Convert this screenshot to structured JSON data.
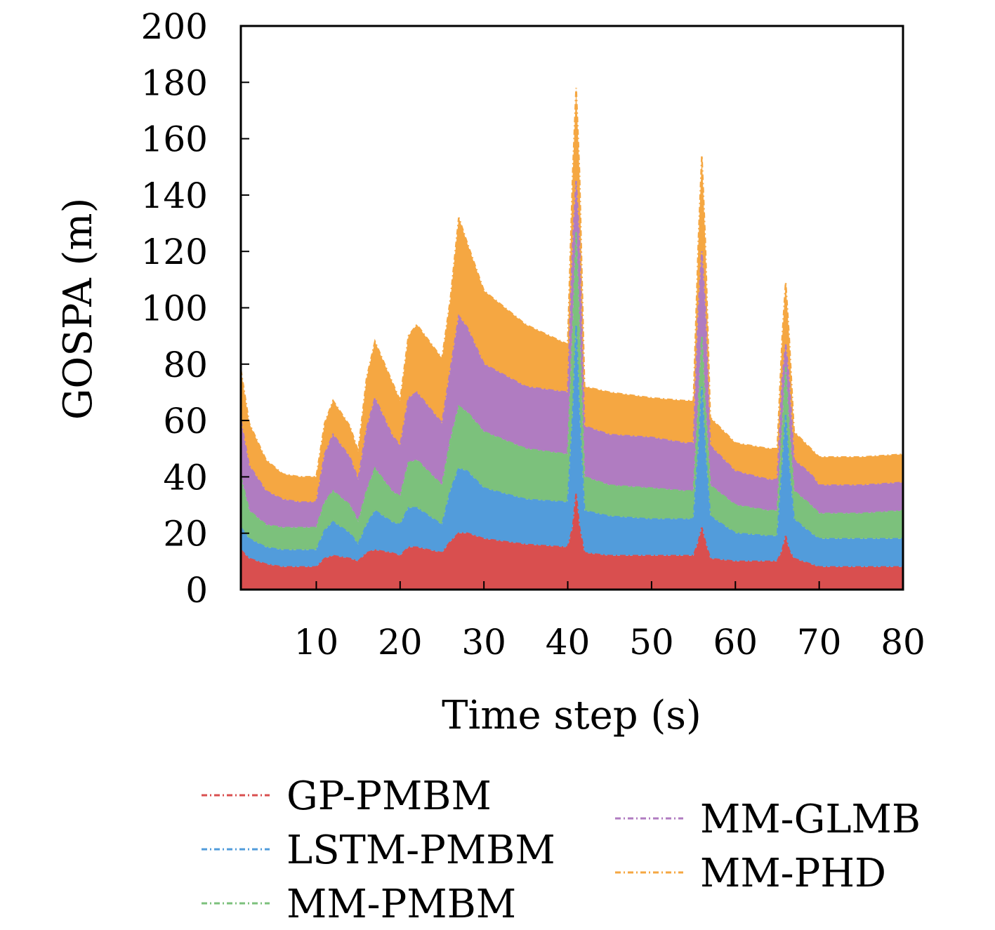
{
  "chart_data": {
    "type": "area",
    "stacked": true,
    "xlabel": "Time step (s)",
    "ylabel": "GOSPA (m)",
    "xlim": [
      1,
      80
    ],
    "ylim": [
      0,
      200
    ],
    "xticks": [
      10,
      20,
      30,
      40,
      50,
      60,
      70,
      80
    ],
    "yticks": [
      0,
      20,
      40,
      60,
      80,
      100,
      120,
      140,
      160,
      180,
      200
    ],
    "grid": false,
    "line_style": "dash-dot",
    "x": [
      1,
      2,
      4,
      6,
      8,
      9,
      10,
      11,
      12,
      14,
      15,
      16,
      17,
      19,
      20,
      21,
      22,
      25,
      26,
      27,
      28,
      30,
      35,
      40,
      40.6,
      41,
      41.4,
      42,
      45,
      50,
      54,
      55,
      55.6,
      56,
      56.4,
      57,
      60,
      64,
      65,
      65.6,
      66,
      66.4,
      67,
      69,
      70,
      75,
      80
    ],
    "series": [
      {
        "name": "GP-PMBM",
        "color": "#d94f4f",
        "values": [
          14,
          11,
          9,
          8,
          8,
          8,
          8,
          11,
          12,
          11,
          10,
          13,
          14,
          13,
          12,
          15,
          15,
          13,
          17,
          20,
          20,
          18,
          16,
          15,
          22,
          34,
          22,
          13,
          12,
          12,
          12,
          12,
          17,
          22,
          17,
          11,
          10,
          10,
          10,
          14,
          19,
          14,
          11,
          9,
          8,
          8,
          8
        ]
      },
      {
        "name": "LSTM-PMBM",
        "color": "#529cdb",
        "values": [
          8,
          7,
          6,
          6,
          6,
          6,
          6,
          10,
          12,
          9,
          6,
          10,
          14,
          11,
          11,
          14,
          14,
          10,
          18,
          23,
          22,
          18,
          16,
          16,
          40,
          60,
          40,
          15,
          14,
          13,
          13,
          13,
          33,
          50,
          33,
          15,
          10,
          9,
          9,
          30,
          43,
          30,
          14,
          11,
          10,
          10,
          10
        ]
      },
      {
        "name": "MM-PMBM",
        "color": "#7cc17c",
        "values": [
          18,
          10,
          8,
          8,
          8,
          8,
          8,
          10,
          11,
          10,
          8,
          12,
          15,
          11,
          10,
          16,
          17,
          14,
          18,
          22,
          21,
          20,
          18,
          17,
          31,
          33,
          31,
          12,
          11,
          11,
          10,
          10,
          16,
          18,
          16,
          11,
          10,
          9,
          9,
          14,
          17,
          14,
          10,
          10,
          9,
          9,
          10
        ]
      },
      {
        "name": "MM-GLMB",
        "color": "#b07cc1",
        "values": [
          20,
          16,
          12,
          10,
          9,
          9,
          9,
          17,
          20,
          17,
          15,
          22,
          25,
          20,
          18,
          23,
          24,
          22,
          25,
          32,
          30,
          24,
          22,
          22,
          30,
          18,
          30,
          18,
          18,
          18,
          17,
          17,
          34,
          30,
          34,
          14,
          12,
          11,
          11,
          17,
          8,
          17,
          11,
          11,
          10,
          10,
          10
        ]
      },
      {
        "name": "MM-PHD",
        "color": "#f5a742",
        "values": [
          18,
          15,
          11,
          9,
          9,
          9,
          9,
          11,
          12,
          11,
          10,
          18,
          20,
          19,
          16,
          22,
          24,
          23,
          25,
          35,
          30,
          26,
          22,
          17,
          25,
          33,
          25,
          14,
          15,
          14,
          15,
          15,
          24,
          34,
          24,
          10,
          10,
          11,
          11,
          15,
          22,
          15,
          10,
          9,
          10,
          10,
          10
        ]
      }
    ],
    "legend": {
      "placement": "below",
      "columns": [
        [
          "GP-PMBM",
          "LSTM-PMBM",
          "MM-PMBM"
        ],
        [
          "MM-GLMB",
          "MM-PHD"
        ]
      ]
    }
  }
}
